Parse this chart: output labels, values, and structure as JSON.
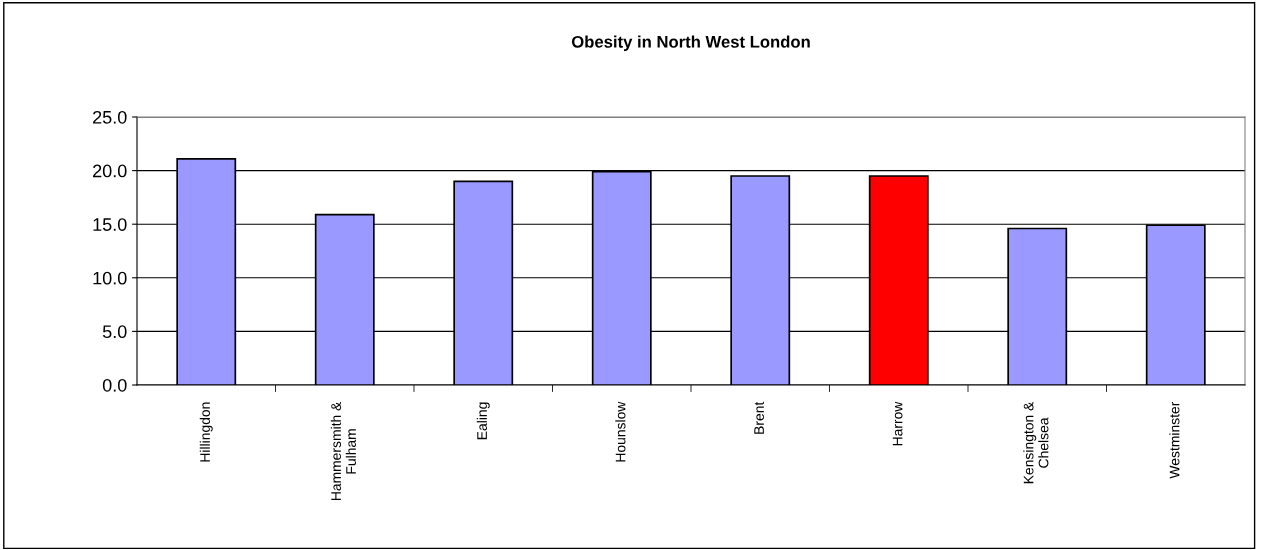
{
  "chart_data": {
    "type": "bar",
    "title": "Obesity in North West London",
    "categories": [
      "Hillingdon",
      "Hammersmith &\nFulham",
      "Ealing",
      "Hounslow",
      "Brent",
      "Harrow",
      "Kensington &\nChelsea",
      "Westminster"
    ],
    "values": [
      21.1,
      15.9,
      19.0,
      19.9,
      19.5,
      19.5,
      14.6,
      14.9
    ],
    "colors": [
      "#9999ff",
      "#9999ff",
      "#9999ff",
      "#9999ff",
      "#9999ff",
      "#ff0000",
      "#9999ff",
      "#9999ff"
    ],
    "ylim": [
      0,
      25
    ],
    "yticks": [
      {
        "value": 0,
        "label": "0.0"
      },
      {
        "value": 5,
        "label": "5.0"
      },
      {
        "value": 10,
        "label": "10.0"
      },
      {
        "value": 15,
        "label": "15.0"
      },
      {
        "value": 20,
        "label": "20.0"
      },
      {
        "value": 25,
        "label": "25.0"
      }
    ],
    "grid": "y"
  }
}
